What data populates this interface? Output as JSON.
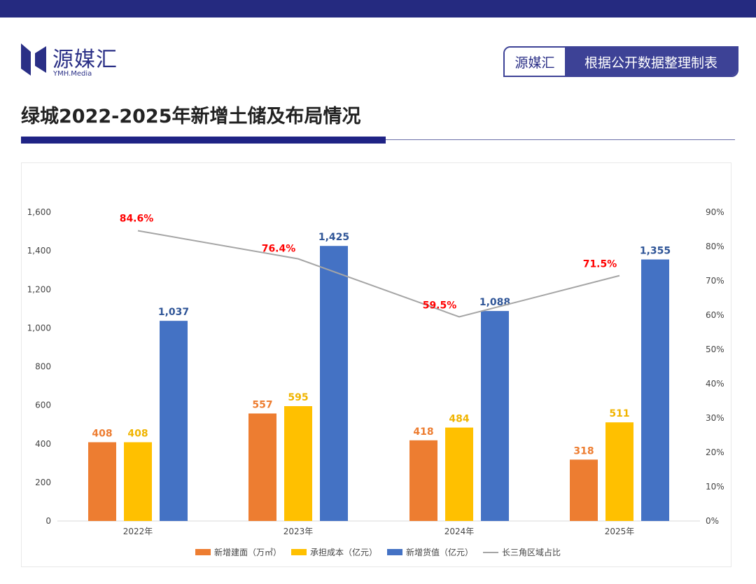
{
  "header": {
    "logo_text": "源媒汇",
    "logo_sub": "YMH.Media",
    "badge_brand": "源媒汇",
    "badge_text": "根据公开数据整理制表",
    "brand_color": "#252a80"
  },
  "title": "绿城2022-2025年新增土储及布局情况",
  "chart_data": {
    "type": "bar",
    "categories": [
      "2022年",
      "2023年",
      "2024年",
      "2025年"
    ],
    "series": [
      {
        "name": "新增建面（万㎡）",
        "type": "bar",
        "axis": "left",
        "color": "#ed7d31",
        "values": [
          408,
          557,
          418,
          318
        ],
        "labels": [
          "408",
          "557",
          "418",
          "318"
        ]
      },
      {
        "name": "承担成本（亿元）",
        "type": "bar",
        "axis": "left",
        "color": "#ffc000",
        "values": [
          408,
          595,
          484,
          511
        ],
        "labels": [
          "408",
          "595",
          "484",
          "511"
        ]
      },
      {
        "name": "新增货值（亿元）",
        "type": "bar",
        "axis": "left",
        "color": "#4472c4",
        "values": [
          1037,
          1425,
          1088,
          1355
        ],
        "labels": [
          "1,037",
          "1,425",
          "1,088",
          "1,355"
        ]
      },
      {
        "name": "长三角区域占比",
        "type": "line",
        "axis": "right",
        "color": "#a5a5a5",
        "values": [
          84.6,
          76.4,
          59.5,
          71.5
        ],
        "labels": [
          "84.6%",
          "76.4%",
          "59.5%",
          "71.5%"
        ],
        "label_color": "#ff0000"
      }
    ],
    "y_left": {
      "range": [
        0,
        1600
      ],
      "ticks": [
        "0",
        "200",
        "400",
        "600",
        "800",
        "1,000",
        "1,200",
        "1,400",
        "1,600"
      ]
    },
    "y_right": {
      "range": [
        0,
        90
      ],
      "ticks": [
        "0%",
        "10%",
        "20%",
        "30%",
        "40%",
        "50%",
        "60%",
        "70%",
        "80%",
        "90%"
      ]
    },
    "grid": false,
    "legend_position": "bottom"
  }
}
